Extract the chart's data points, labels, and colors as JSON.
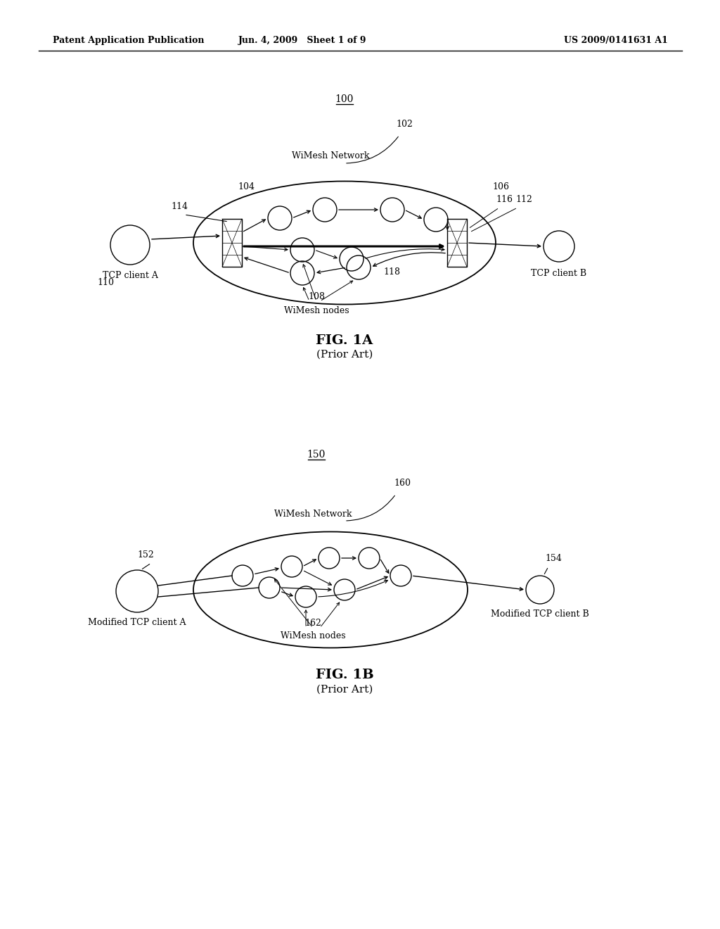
{
  "bg_color": "#ffffff",
  "header_left": "Patent Application Publication",
  "header_center": "Jun. 4, 2009   Sheet 1 of 9",
  "header_right": "US 2009/0141631 A1",
  "fig1a": {
    "label": "100",
    "network_label": "WiMesh Network",
    "ref_100": "100",
    "ref_102": "102",
    "ref_104": "104",
    "ref_106": "106",
    "ref_108": "108",
    "ref_110": "110",
    "ref_112": "112",
    "ref_114": "114",
    "ref_116": "116",
    "ref_118": "118",
    "nodes_label": "WiMesh nodes",
    "client_left_label": "TCP client A",
    "client_right_label": "TCP client B",
    "fig_label": "FIG. 1A",
    "fig_sublabel": "(Prior Art)"
  },
  "fig1b": {
    "label": "150",
    "network_label": "WiMesh Network",
    "ref_150": "150",
    "ref_152": "152",
    "ref_154": "154",
    "ref_160": "160",
    "ref_162": "162",
    "nodes_label": "WiMesh nodes",
    "client_left_label": "Modified TCP client A",
    "client_right_label": "Modified TCP client B",
    "fig_label": "FIG. 1B",
    "fig_sublabel": "(Prior Art)"
  }
}
